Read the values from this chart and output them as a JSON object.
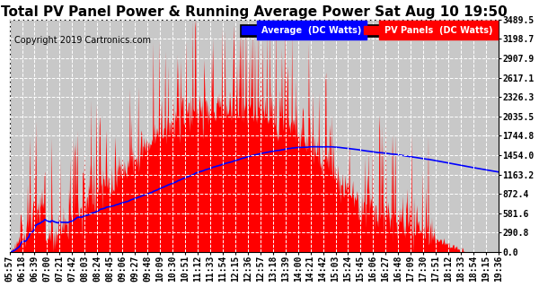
{
  "title": "Total PV Panel Power & Running Average Power Sat Aug 10 19:50",
  "copyright": "Copyright 2019 Cartronics.com",
  "legend_avg": "Average  (DC Watts)",
  "legend_pv": "PV Panels  (DC Watts)",
  "yticks": [
    0.0,
    290.8,
    581.6,
    872.4,
    1163.2,
    1454.0,
    1744.8,
    2035.5,
    2326.3,
    2617.1,
    2907.9,
    3198.7,
    3489.5
  ],
  "ymax": 3489.5,
  "xtick_labels": [
    "05:57",
    "06:18",
    "06:39",
    "07:00",
    "07:21",
    "07:42",
    "08:03",
    "08:24",
    "08:45",
    "09:06",
    "09:27",
    "09:48",
    "10:09",
    "10:30",
    "10:51",
    "11:12",
    "11:33",
    "11:54",
    "12:15",
    "12:36",
    "12:57",
    "13:18",
    "13:39",
    "14:00",
    "14:21",
    "14:42",
    "15:03",
    "15:24",
    "15:45",
    "16:06",
    "16:27",
    "16:48",
    "17:09",
    "17:30",
    "17:51",
    "18:12",
    "18:33",
    "18:54",
    "19:15",
    "19:36"
  ],
  "bg_color": "#ffffff",
  "plot_bg_color": "#c8c8c8",
  "grid_color": "#ffffff",
  "pv_fill_color": "#ff0000",
  "avg_line_color": "#0000ff",
  "title_fontsize": 11,
  "tick_fontsize": 7,
  "copyright_fontsize": 7
}
